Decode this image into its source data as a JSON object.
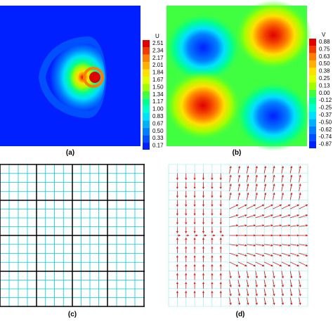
{
  "chart_data": [
    {
      "type": "heatmap",
      "panel_label": "(a)",
      "colorbar": {
        "title": "U",
        "levels": [
          "2.51",
          "2.34",
          "2.17",
          "2.01",
          "1.84",
          "1.67",
          "1.50",
          "1.34",
          "1.17",
          "1.00",
          "0.83",
          "0.67",
          "0.50",
          "0.33",
          "0.17"
        ],
        "colors": [
          "#e00000",
          "#f03a00",
          "#ff8000",
          "#ffb000",
          "#ffe000",
          "#e0ff00",
          "#a0ff00",
          "#40ff40",
          "#00ff90",
          "#00ffd0",
          "#00e0ff",
          "#00b0ff",
          "#0080ff",
          "#0050ff",
          "#0020ff"
        ]
      },
      "description_levels": {
        "background": 0,
        "peak": 2.51,
        "peak_location": "right-center"
      }
    },
    {
      "type": "heatmap",
      "panel_label": "(b)",
      "colorbar": {
        "title": "V",
        "levels": [
          "0.88",
          "0.75",
          "0.63",
          "0.50",
          "0.38",
          "0.25",
          "0.13",
          "0.00",
          "-0.12",
          "-0.25",
          "-0.37",
          "-0.50",
          "-0.62",
          "-0.74",
          "-0.87"
        ],
        "colors": [
          "#e00000",
          "#f03a00",
          "#ff8000",
          "#ffb000",
          "#ffe000",
          "#e0ff00",
          "#a0ff00",
          "#40ff40",
          "#00ff90",
          "#00ffd0",
          "#00e0ff",
          "#00b0ff",
          "#0080ff",
          "#0050ff",
          "#0020ff"
        ]
      },
      "quadrants": {
        "top-left": -0.87,
        "top-right": 0.88,
        "bottom-left": 0.88,
        "bottom-right": -0.87
      }
    },
    {
      "type": "grid",
      "panel_label": "(c)",
      "coarse_cells": 4,
      "fine_per_coarse": 4,
      "coarse_color": "#000000",
      "fine_color": "#00c8d8"
    },
    {
      "type": "vector-field",
      "panel_label": "(d)",
      "grid_color": "#8fe8f0",
      "arrow_color": "#d02020"
    }
  ]
}
